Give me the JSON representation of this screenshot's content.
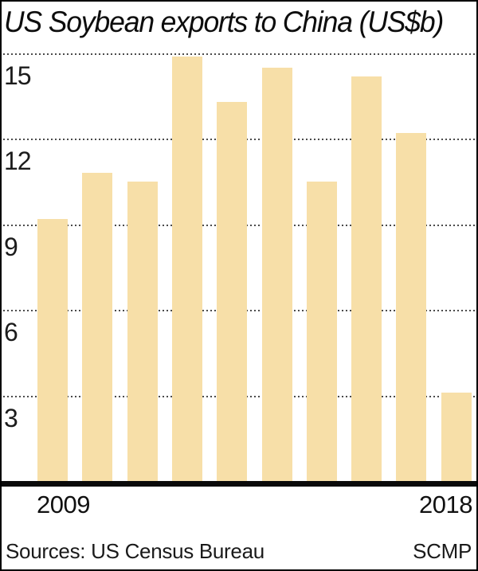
{
  "title": "US Soybean exports to China (US$b)",
  "footer": {
    "sources": "Sources: US Census Bureau",
    "credit": "SCMP"
  },
  "axis": {
    "first_year_label": "2009",
    "last_year_label": "2018"
  },
  "colors": {
    "bar_fill": "#f7dfa8",
    "axis_line": "#0a0a0a",
    "gridline_dots": "#4b4b4b",
    "text": "#111111",
    "background": "#ffffff",
    "border": "#000000"
  },
  "chart_data": {
    "type": "bar",
    "title": "US Soybean exports to China (US$b)",
    "categories": [
      2009,
      2010,
      2011,
      2012,
      2013,
      2014,
      2015,
      2016,
      2017,
      2018
    ],
    "values": [
      9.2,
      10.8,
      10.5,
      14.9,
      13.3,
      14.5,
      10.5,
      14.2,
      12.2,
      3.1
    ],
    "xlabel": "",
    "ylabel": "",
    "yticks": [
      3,
      6,
      9,
      12,
      15
    ],
    "ylim": [
      0,
      15.4
    ],
    "grid": "horizontal-dotted",
    "legend_position": "none",
    "x_tick_labels_shown": [
      "2009",
      "2018"
    ]
  }
}
